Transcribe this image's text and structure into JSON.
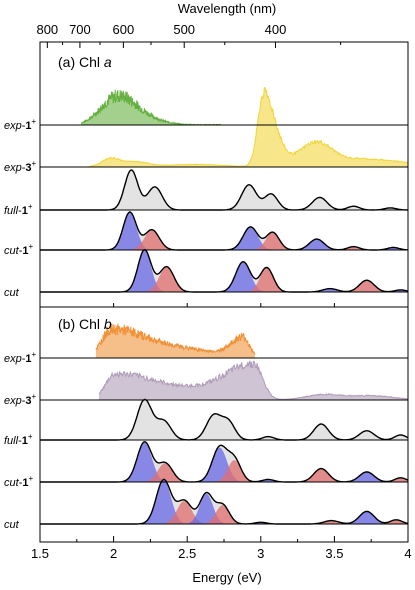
{
  "chart_data": {
    "type": "area",
    "top_axis": {
      "label": "Wavelength (nm)",
      "ticks": [
        800,
        700,
        600,
        500,
        400
      ]
    },
    "bottom_axis": {
      "label": "Energy (eV)",
      "ticks": [
        "1.5",
        "2",
        "2.5",
        "3",
        "3.5",
        "4"
      ],
      "xlim": [
        1.5,
        4.0
      ]
    },
    "panels": [
      {
        "title_prefix": "(a) Chl ",
        "title_italic": "a",
        "traces": [
          {
            "key": "exp1",
            "label_italic": "exp",
            "label_bold": "1",
            "sup": "+",
            "color": "#5aaa32",
            "range": [
              1.78,
              2.73
            ],
            "peaks": [
              [
                2.0,
                0.45,
                0.1,
                0.12
              ],
              [
                2.1,
                0.3,
                0.12,
                0.15
              ]
            ],
            "noise": 0.25
          },
          {
            "key": "exp3",
            "label_italic": "exp",
            "label_bold": "3",
            "sup": "+",
            "color": "#f0d22a",
            "range": [
              1.83,
              4.0
            ],
            "peaks": [
              [
                1.98,
                0.2,
                0.06,
                0.06
              ],
              [
                2.15,
                0.12,
                0.08,
                0.08
              ],
              [
                2.55,
                0.06,
                0.2,
                0.2
              ],
              [
                3.02,
                1.75,
                0.04,
                0.08
              ],
              [
                3.38,
                0.6,
                0.12,
                0.12
              ],
              [
                3.7,
                0.18,
                0.1,
                0.3
              ]
            ],
            "noise": 0.08
          },
          {
            "key": "full1",
            "label_italic": "full",
            "label_bold": "1",
            "sup": "+",
            "color": "#d9d9d9",
            "range": [
              1.5,
              4.0
            ],
            "peaks": [
              [
                2.12,
                0.95,
                0.045,
                0.045
              ],
              [
                2.28,
                0.55,
                0.05,
                0.05
              ],
              [
                2.92,
                0.6,
                0.05,
                0.05
              ],
              [
                3.07,
                0.38,
                0.045,
                0.045
              ],
              [
                3.4,
                0.3,
                0.05,
                0.05
              ],
              [
                3.63,
                0.09,
                0.04,
                0.04
              ],
              [
                3.88,
                0.05,
                0.04,
                0.04
              ]
            ],
            "noise": 0
          },
          {
            "key": "cut1",
            "label_italic": "cut",
            "label_bold": "1",
            "sup": "+",
            "color": "#8b8bee",
            "range": [
              1.5,
              4.0
            ],
            "peaks": [
              [
                2.11,
                0.9,
                0.045,
                0.045
              ],
              [
                2.26,
                0.48,
                0.05,
                0.05
              ],
              [
                2.93,
                0.55,
                0.05,
                0.05
              ],
              [
                3.08,
                0.42,
                0.045,
                0.045
              ],
              [
                3.38,
                0.26,
                0.05,
                0.05
              ],
              [
                3.63,
                0.08,
                0.04,
                0.04
              ],
              [
                3.9,
                0.06,
                0.04,
                0.04
              ]
            ],
            "noise": 0
          },
          {
            "key": "cut_a",
            "label_italic": "cut",
            "label_bold": "",
            "sup": "",
            "color": "#8b8bee",
            "range": [
              1.5,
              4.0
            ],
            "peaks": [
              [
                2.21,
                1.0,
                0.045,
                0.045
              ],
              [
                2.36,
                0.6,
                0.05,
                0.05
              ],
              [
                2.88,
                0.72,
                0.05,
                0.05
              ],
              [
                3.04,
                0.58,
                0.045,
                0.045
              ],
              [
                3.47,
                0.08,
                0.05,
                0.05
              ],
              [
                3.72,
                0.28,
                0.05,
                0.05
              ],
              [
                3.95,
                0.05,
                0.04,
                0.04
              ]
            ],
            "noise": 0
          }
        ]
      },
      {
        "title_prefix": "(b) Chl ",
        "title_italic": "b",
        "traces": [
          {
            "key": "exp1b",
            "label_italic": "exp",
            "label_bold": "1",
            "sup": "+",
            "color": "#ee8a2a",
            "range": [
              1.88,
              2.96
            ],
            "peaks": [
              [
                1.98,
                0.55,
                0.06,
                0.2
              ],
              [
                2.35,
                0.25,
                0.3,
                0.3
              ],
              [
                2.88,
                0.45,
                0.08,
                0.04
              ]
            ],
            "noise": 0.2
          },
          {
            "key": "exp3b",
            "label_italic": "exp",
            "label_bold": "3",
            "sup": "+",
            "color": "#a893b1",
            "range": [
              1.9,
              4.0
            ],
            "peaks": [
              [
                2.0,
                0.45,
                0.05,
                0.2
              ],
              [
                2.35,
                0.3,
                0.3,
                0.25
              ],
              [
                2.95,
                0.85,
                0.2,
                0.06
              ],
              [
                3.42,
                0.12,
                0.12,
                0.12
              ],
              [
                3.75,
                0.1,
                0.15,
                0.15
              ]
            ],
            "noise": 0.12
          },
          {
            "key": "full1b",
            "label_italic": "full",
            "label_bold": "1",
            "sup": "+",
            "color": "#d9d9d9",
            "range": [
              1.5,
              4.0
            ],
            "peaks": [
              [
                2.21,
                0.95,
                0.05,
                0.05
              ],
              [
                2.34,
                0.45,
                0.05,
                0.05
              ],
              [
                2.68,
                0.58,
                0.05,
                0.05
              ],
              [
                2.78,
                0.42,
                0.045,
                0.045
              ],
              [
                3.05,
                0.08,
                0.04,
                0.04
              ],
              [
                3.41,
                0.38,
                0.05,
                0.05
              ],
              [
                3.72,
                0.22,
                0.05,
                0.05
              ],
              [
                3.95,
                0.12,
                0.04,
                0.04
              ]
            ],
            "noise": 0
          },
          {
            "key": "cut1b",
            "label_italic": "cut",
            "label_bold": "1",
            "sup": "+",
            "color": "#8b8bee",
            "range": [
              1.5,
              4.0
            ],
            "peaks": [
              [
                2.21,
                0.95,
                0.05,
                0.05
              ],
              [
                2.35,
                0.45,
                0.05,
                0.05
              ],
              [
                2.72,
                0.82,
                0.05,
                0.05
              ],
              [
                2.82,
                0.52,
                0.045,
                0.045
              ],
              [
                3.05,
                0.06,
                0.04,
                0.04
              ],
              [
                3.41,
                0.32,
                0.05,
                0.05
              ],
              [
                3.72,
                0.24,
                0.05,
                0.05
              ],
              [
                3.95,
                0.1,
                0.04,
                0.04
              ]
            ],
            "noise": 0
          },
          {
            "key": "cut_b",
            "label_italic": "cut",
            "label_bold": "",
            "sup": "",
            "color": "#8b8bee",
            "range": [
              1.5,
              4.0
            ],
            "peaks": [
              [
                2.34,
                1.05,
                0.05,
                0.05
              ],
              [
                2.48,
                0.55,
                0.05,
                0.05
              ],
              [
                2.63,
                0.72,
                0.045,
                0.045
              ],
              [
                2.74,
                0.45,
                0.045,
                0.045
              ],
              [
                3.0,
                0.04,
                0.04,
                0.04
              ],
              [
                3.48,
                0.08,
                0.05,
                0.05
              ],
              [
                3.72,
                0.3,
                0.05,
                0.05
              ],
              [
                3.92,
                0.1,
                0.04,
                0.04
              ]
            ],
            "noise": 0
          }
        ]
      }
    ],
    "colors": {
      "red": "#e26e6e",
      "blue": "#6868e6",
      "gray": "#d9d9d9"
    }
  }
}
